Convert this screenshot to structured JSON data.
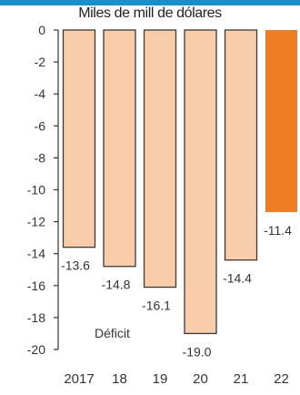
{
  "chart_data": {
    "type": "bar",
    "title": "Miles de mill de dólares",
    "categories": [
      "2017",
      "18",
      "19",
      "20",
      "21",
      "22"
    ],
    "values": [
      -13.6,
      -14.8,
      -16.1,
      -19.0,
      -14.4,
      -11.4
    ],
    "value_labels": [
      "-13.6",
      "-14.8",
      "-16.1",
      "-19.0",
      "-14.4",
      "-11.4"
    ],
    "ylim": [
      -20,
      0
    ],
    "yticks": [
      0,
      -2,
      -4,
      -6,
      -8,
      -10,
      -12,
      -14,
      -16,
      -18,
      -20
    ],
    "ytick_labels": [
      "0",
      "-2",
      "-4",
      "-6",
      "-8",
      "-10",
      "-12",
      "-14",
      "-16",
      "-18",
      "-20"
    ],
    "annotation": "Déficit",
    "grid": false,
    "colors": {
      "bar": "#f9ccaa",
      "bar_border": "#3a3a3a",
      "highlight_bar": "#ee7d24",
      "header_band": "#1a8fc9"
    },
    "highlight_index": 5
  }
}
